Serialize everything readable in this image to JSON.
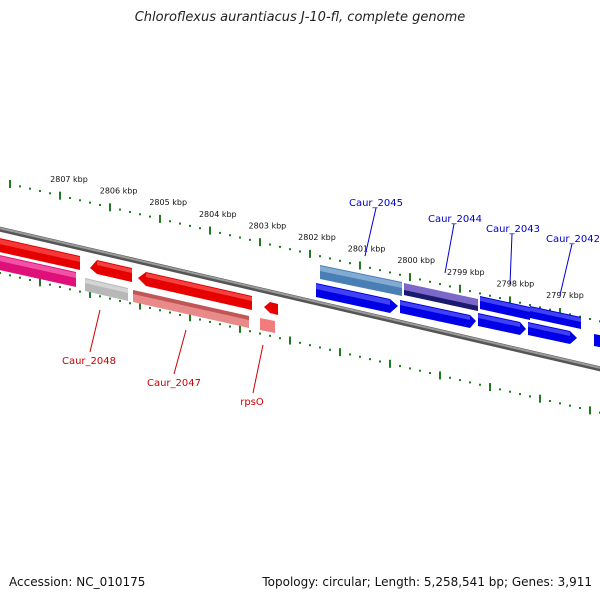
{
  "title": "Chloroflexus aurantiacus J-10-fl, complete genome",
  "footer": {
    "accession": "Accession: NC_010175",
    "summary": "Topology: circular; Length: 5,258,541 bp; Genes: 3,911"
  },
  "colors": {
    "ticks": "#1f7a1f",
    "backbone": "#808080",
    "label_forward": "#0000cc",
    "label_reverse": "#cc0000"
  },
  "ticks": [
    {
      "label": "2807 kbp"
    },
    {
      "label": "2806 kbp"
    },
    {
      "label": "2805 kbp"
    },
    {
      "label": "2804 kbp"
    },
    {
      "label": "2803 kbp"
    },
    {
      "label": "2802 kbp"
    },
    {
      "label": "2801 kbp"
    },
    {
      "label": "2800 kbp"
    },
    {
      "label": "2799 kbp"
    },
    {
      "label": "2798 kbp"
    },
    {
      "label": "2797 kbp"
    }
  ],
  "gene_labels": {
    "caur_2045": "Caur_2045",
    "caur_2044": "Caur_2044",
    "caur_2043": "Caur_2043",
    "caur_2042": "Caur_2042",
    "caur_2048": "Caur_2048",
    "caur_2047": "Caur_2047",
    "rpso": "rpsO"
  }
}
